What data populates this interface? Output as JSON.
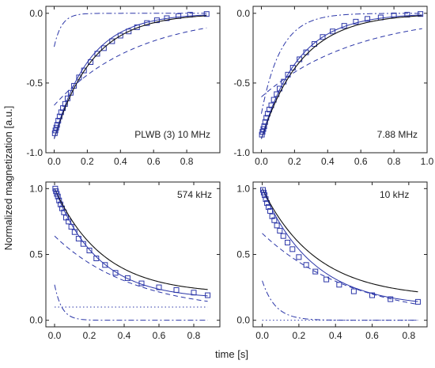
{
  "figure": {
    "ylabel": "Normalized magnetization [a.u.]",
    "xlabel": "time [s]"
  },
  "colors": {
    "data": "#2b36a8",
    "fit": "#111111",
    "frame": "#222222"
  },
  "chart_data": [
    {
      "type": "scatter",
      "annotation": "PLWB (3)   10 MHz",
      "xlim": [
        -0.05,
        1.0
      ],
      "ylim": [
        -1.0,
        0.05
      ],
      "xticks": [
        0.0,
        0.2,
        0.4,
        0.6,
        0.8
      ],
      "yticks": [
        -1.0,
        -0.5,
        0.0
      ],
      "ytick_labels": [
        "-1.0",
        "-0.5",
        "0.0"
      ],
      "show_xtick_labels": true,
      "show_ytick_labels": true,
      "series": [
        {
          "style": "markers",
          "x": [
            0.004,
            0.008,
            0.013,
            0.018,
            0.025,
            0.033,
            0.042,
            0.053,
            0.066,
            0.081,
            0.1,
            0.12,
            0.15,
            0.18,
            0.22,
            0.26,
            0.3,
            0.35,
            0.4,
            0.45,
            0.5,
            0.56,
            0.62,
            0.68,
            0.75,
            0.82,
            0.92
          ],
          "y": [
            -0.86,
            -0.84,
            -0.82,
            -0.8,
            -0.77,
            -0.74,
            -0.71,
            -0.68,
            -0.65,
            -0.61,
            -0.57,
            -0.52,
            -0.46,
            -0.41,
            -0.35,
            -0.29,
            -0.25,
            -0.2,
            -0.16,
            -0.13,
            -0.1,
            -0.07,
            -0.05,
            -0.035,
            -0.02,
            -0.01,
            -0.005
          ]
        },
        {
          "style": "fit-solid",
          "model": "exp",
          "a": -0.9,
          "b": 4.3,
          "c": 0.0,
          "x0": 0.0,
          "x1": 0.92
        },
        {
          "style": "fit-blue",
          "model": "exp",
          "a": -0.9,
          "b": 4.7,
          "c": 0.0,
          "x0": 0.0,
          "x1": 0.92
        },
        {
          "style": "dashed",
          "model": "exp",
          "a": -0.66,
          "b": 2.0,
          "c": 0.0,
          "x0": 0.0,
          "x1": 0.92
        },
        {
          "style": "dashdot",
          "model": "exp",
          "a": -0.24,
          "b": 22.0,
          "c": 0.0,
          "x0": 0.0,
          "x1": 0.92
        }
      ]
    },
    {
      "type": "scatter",
      "annotation": "7.88 MHz",
      "xlim": [
        -0.05,
        1.0
      ],
      "ylim": [
        -1.0,
        0.05
      ],
      "xticks": [
        0.0,
        0.2,
        0.4,
        0.6,
        0.8,
        1.0
      ],
      "yticks": [
        -1.0,
        -0.5,
        0.0
      ],
      "ytick_labels": [
        "-1.0",
        "-0.5",
        "0.0"
      ],
      "show_xtick_labels": true,
      "show_ytick_labels": true,
      "series": [
        {
          "style": "markers",
          "x": [
            0.003,
            0.007,
            0.012,
            0.017,
            0.023,
            0.03,
            0.038,
            0.048,
            0.06,
            0.075,
            0.092,
            0.11,
            0.135,
            0.16,
            0.19,
            0.23,
            0.27,
            0.32,
            0.37,
            0.43,
            0.5,
            0.57,
            0.64,
            0.72,
            0.8,
            0.88,
            0.96
          ],
          "y": [
            -0.87,
            -0.85,
            -0.83,
            -0.81,
            -0.78,
            -0.75,
            -0.72,
            -0.69,
            -0.66,
            -0.62,
            -0.58,
            -0.54,
            -0.49,
            -0.44,
            -0.39,
            -0.33,
            -0.28,
            -0.22,
            -0.17,
            -0.13,
            -0.09,
            -0.06,
            -0.04,
            -0.03,
            -0.015,
            -0.01,
            -0.005
          ]
        },
        {
          "style": "fit-solid",
          "model": "exp",
          "a": -0.9,
          "b": 4.1,
          "c": 0.0,
          "x0": 0.0,
          "x1": 0.97
        },
        {
          "style": "fit-blue",
          "model": "exp",
          "a": -0.9,
          "b": 4.5,
          "c": 0.0,
          "x0": 0.0,
          "x1": 0.97
        },
        {
          "style": "dashed",
          "model": "exp",
          "a": -0.6,
          "b": 1.75,
          "c": 0.0,
          "x0": 0.0,
          "x1": 0.97
        },
        {
          "style": "dashdot",
          "model": "exp",
          "a": -0.72,
          "b": 8.5,
          "c": 0.0,
          "x0": 0.0,
          "x1": 0.97
        }
      ]
    },
    {
      "type": "scatter",
      "annotation": "574 kHz",
      "xlim": [
        -0.05,
        0.95
      ],
      "ylim": [
        -0.05,
        1.05
      ],
      "xticks": [
        0.0,
        0.2,
        0.4,
        0.6,
        0.8
      ],
      "yticks": [
        0.0,
        0.5,
        1.0
      ],
      "ytick_labels": [
        "0.0",
        "0.5",
        "1.0"
      ],
      "show_xtick_labels": true,
      "show_ytick_labels": true,
      "series": [
        {
          "style": "markers",
          "x": [
            0.004,
            0.008,
            0.013,
            0.019,
            0.026,
            0.034,
            0.043,
            0.054,
            0.066,
            0.08,
            0.096,
            0.115,
            0.138,
            0.165,
            0.2,
            0.24,
            0.29,
            0.35,
            0.42,
            0.5,
            0.6,
            0.7,
            0.8,
            0.88
          ],
          "y": [
            1.0,
            0.98,
            0.96,
            0.94,
            0.91,
            0.88,
            0.85,
            0.82,
            0.78,
            0.75,
            0.71,
            0.67,
            0.62,
            0.58,
            0.53,
            0.47,
            0.42,
            0.36,
            0.32,
            0.28,
            0.25,
            0.23,
            0.21,
            0.19
          ]
        },
        {
          "style": "fit-solid",
          "model": "exp",
          "a": 0.8,
          "b": 3.6,
          "c": 0.2,
          "x0": 0.0,
          "x1": 0.88
        },
        {
          "style": "fit-blue",
          "model": "exp",
          "a": 0.84,
          "b": 4.0,
          "c": 0.16,
          "x0": 0.0,
          "x1": 0.88
        },
        {
          "style": "dashed",
          "model": "exp",
          "a": 0.58,
          "b": 2.2,
          "c": 0.06,
          "x0": 0.0,
          "x1": 0.88
        },
        {
          "style": "dashdot",
          "model": "exp",
          "a": 0.27,
          "b": 24.0,
          "c": 0.0,
          "x0": 0.0,
          "x1": 0.88
        },
        {
          "style": "dotted",
          "model": "const",
          "c": 0.1,
          "x0": 0.0,
          "x1": 0.88
        }
      ]
    },
    {
      "type": "scatter",
      "annotation": "10 kHz",
      "xlim": [
        -0.05,
        0.9
      ],
      "ylim": [
        -0.05,
        1.05
      ],
      "xticks": [
        0.0,
        0.2,
        0.4,
        0.6,
        0.8
      ],
      "yticks": [
        0.0,
        0.5,
        1.0
      ],
      "ytick_labels": [
        "0.0",
        "0.5",
        "1.0"
      ],
      "show_xtick_labels": true,
      "show_ytick_labels": true,
      "series": [
        {
          "style": "markers",
          "x": [
            0.004,
            0.008,
            0.013,
            0.019,
            0.026,
            0.034,
            0.043,
            0.054,
            0.066,
            0.08,
            0.096,
            0.115,
            0.138,
            0.165,
            0.2,
            0.24,
            0.29,
            0.35,
            0.42,
            0.5,
            0.6,
            0.7,
            0.85
          ],
          "y": [
            0.99,
            0.97,
            0.95,
            0.92,
            0.89,
            0.86,
            0.83,
            0.79,
            0.76,
            0.72,
            0.68,
            0.64,
            0.59,
            0.54,
            0.48,
            0.42,
            0.37,
            0.31,
            0.27,
            0.22,
            0.19,
            0.16,
            0.14
          ]
        },
        {
          "style": "fit-solid",
          "model": "exp",
          "a": 0.83,
          "b": 3.4,
          "c": 0.17,
          "x0": 0.0,
          "x1": 0.85
        },
        {
          "style": "fit-blue",
          "model": "exp",
          "a": 0.9,
          "b": 3.6,
          "c": 0.1,
          "x0": 0.0,
          "x1": 0.85
        },
        {
          "style": "dashed",
          "model": "exp",
          "a": 0.66,
          "b": 2.0,
          "c": 0.0,
          "x0": 0.0,
          "x1": 0.85
        },
        {
          "style": "dashdot",
          "model": "exp",
          "a": 0.3,
          "b": 14.0,
          "c": 0.0,
          "x0": 0.0,
          "x1": 0.85
        },
        {
          "style": "dotted",
          "model": "const",
          "c": 0.0,
          "x0": 0.0,
          "x1": 0.85
        }
      ]
    }
  ]
}
